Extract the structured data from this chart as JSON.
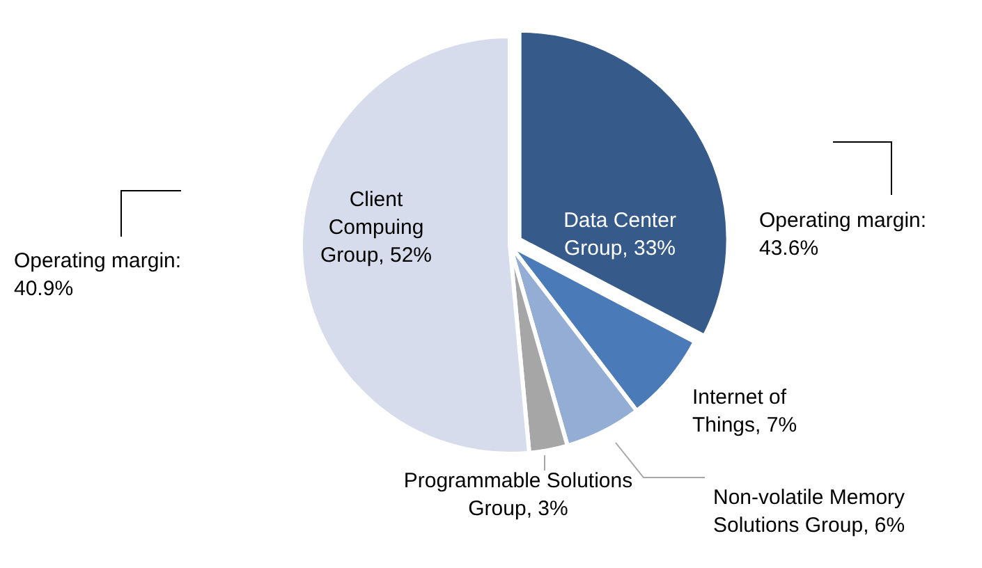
{
  "chart_data": {
    "type": "pie",
    "categories": [
      "Data Center Group",
      "Internet of Things",
      "Non-volatile Memory Solutions Group",
      "Programmable Solutions Group",
      "Client Compuing Group"
    ],
    "values": [
      33,
      7,
      6,
      3,
      52
    ],
    "value_labels": [
      "33%",
      "7%",
      "6%",
      "3%",
      "52%"
    ],
    "colors": [
      "#365a8a",
      "#4a7ab8",
      "#93add4",
      "#a6a6a6",
      "#d6dcec"
    ],
    "annotations": [
      "Operating margin: 43.6%",
      "Operating margin: 40.9%"
    ]
  }
}
